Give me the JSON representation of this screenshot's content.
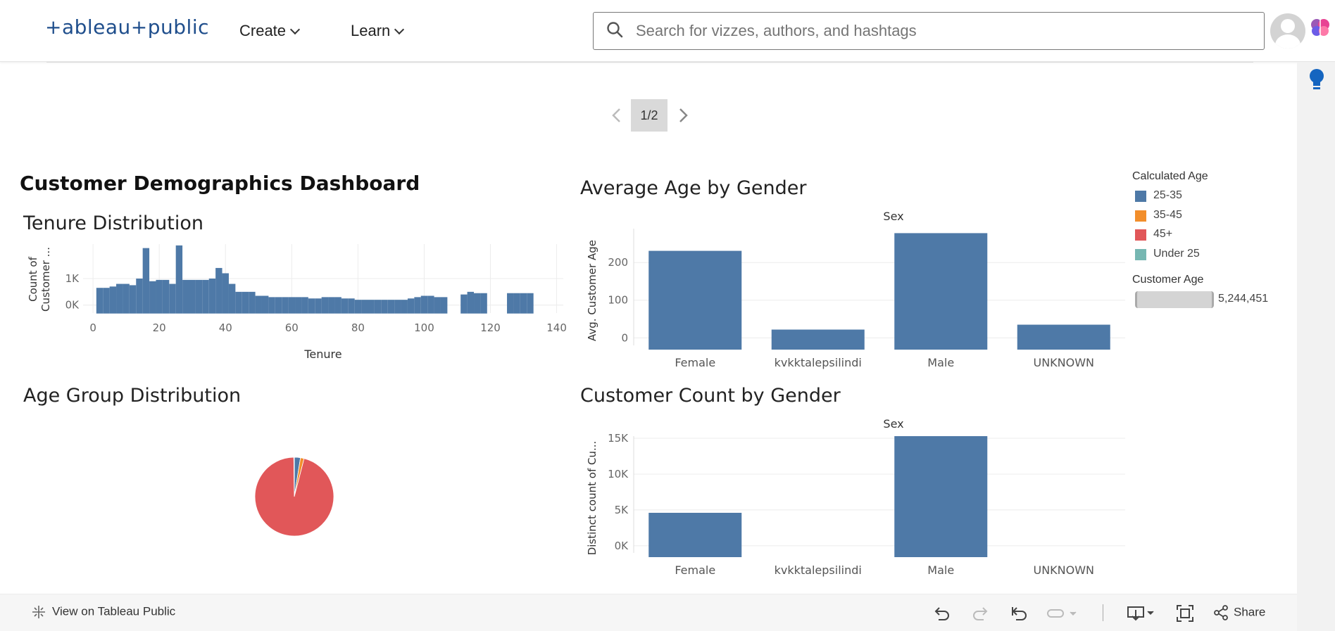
{
  "header": {
    "logo_text": "+ableau+public",
    "nav": [
      {
        "label": "Create"
      },
      {
        "label": "Learn"
      }
    ],
    "search_placeholder": "Search for vizzes, authors, and hashtags"
  },
  "pager": {
    "label": "1/2"
  },
  "dashboard": {
    "title": "Customer Demographics Dashboard",
    "tenure_title": "Tenure Distribution",
    "agegroup_title": "Age Group Distribution",
    "avgage_title": "Average Age by Gender",
    "count_title": "Customer Count by Gender"
  },
  "legend": {
    "title": "Calculated Age",
    "items": [
      {
        "label": "25-35",
        "color": "#4e79a7"
      },
      {
        "label": "35-45",
        "color": "#f28e2b"
      },
      {
        "label": "45+",
        "color": "#e15759"
      },
      {
        "label": "Under 25",
        "color": "#76b7b2"
      }
    ],
    "size_title": "Customer Age",
    "size_value": "5,244,451"
  },
  "chart_data": [
    {
      "type": "bar",
      "title": "Tenure Distribution",
      "xlabel": "Tenure",
      "ylabel": "Count of Customer ...",
      "xticks": [
        "0",
        "20",
        "40",
        "60",
        "80",
        "100",
        "120",
        "140"
      ],
      "yticks": [
        "0K",
        "1K"
      ],
      "xlim": [
        -3,
        142
      ],
      "ylim": [
        -300,
        2300
      ],
      "x": [
        2,
        4,
        6,
        8,
        10,
        12,
        14,
        16,
        18,
        20,
        22,
        24,
        26,
        28,
        30,
        32,
        34,
        36,
        38,
        40,
        42,
        44,
        46,
        48,
        50,
        52,
        54,
        56,
        58,
        60,
        62,
        64,
        66,
        68,
        70,
        72,
        74,
        76,
        78,
        80,
        82,
        84,
        86,
        88,
        90,
        92,
        94,
        96,
        98,
        100,
        102,
        104,
        106,
        108,
        110,
        112,
        114,
        116,
        118,
        120,
        122,
        124,
        126,
        128,
        130,
        132,
        134
      ],
      "values": [
        650,
        650,
        700,
        800,
        800,
        750,
        1000,
        2150,
        900,
        950,
        950,
        800,
        2250,
        950,
        950,
        950,
        950,
        1000,
        1400,
        1200,
        800,
        500,
        500,
        500,
        350,
        350,
        300,
        300,
        300,
        300,
        300,
        300,
        250,
        250,
        300,
        300,
        300,
        250,
        250,
        200,
        200,
        200,
        200,
        200,
        200,
        200,
        200,
        250,
        300,
        350,
        350,
        300,
        300,
        0,
        0,
        400,
        500,
        450,
        450,
        0,
        0,
        0,
        450,
        450,
        450,
        450,
        0
      ],
      "color": "#4e79a7"
    },
    {
      "type": "bar",
      "title": "Average Age by Gender",
      "header": "Sex",
      "ylabel": "Avg. Customer Age",
      "categories": [
        "Female",
        "kvkktalepsilindi",
        "Male",
        "UNKNOWN"
      ],
      "values": [
        231,
        22,
        278,
        35
      ],
      "yticks": [
        0,
        100,
        200
      ],
      "ylim": [
        -20,
        290
      ],
      "color": "#4e79a7"
    },
    {
      "type": "bar",
      "title": "Customer Count by Gender",
      "header": "Sex",
      "ylabel": "Distinct count of Cu...",
      "categories": [
        "Female",
        "kvkktalepsilindi",
        "Male",
        "UNKNOWN"
      ],
      "values": [
        4600,
        0,
        15300,
        0
      ],
      "yticks": [
        "0K",
        "5K",
        "10K",
        "15K"
      ],
      "ytick_values": [
        0,
        5000,
        10000,
        15000
      ],
      "ylim": [
        -1000,
        15300
      ],
      "color": "#4e79a7"
    },
    {
      "type": "pie",
      "title": "Age Group Distribution",
      "labels": [
        "25-35",
        "35-45",
        "45+",
        "Under 25"
      ],
      "values": [
        2.5,
        1.5,
        95.8,
        0.2
      ],
      "colors": [
        "#4e79a7",
        "#f28e2b",
        "#e15759",
        "#76b7b2"
      ]
    }
  ],
  "bottom": {
    "view_label": "View on Tableau Public",
    "share_label": "Share"
  }
}
